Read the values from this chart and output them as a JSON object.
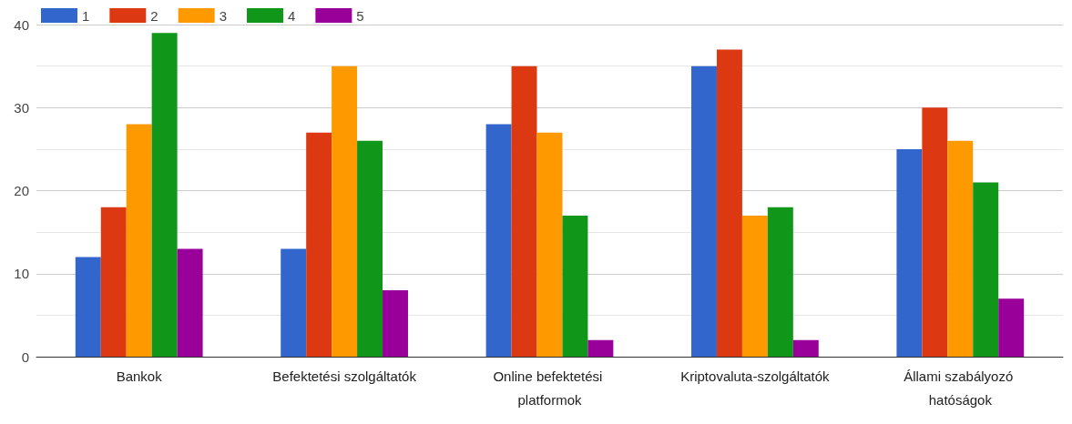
{
  "chart_data": {
    "type": "bar",
    "categories": [
      "Bankok",
      "Befektetési szolgáltatók",
      "Online befektetési platformok",
      "Kriptovaluta-szolgáltatók",
      "Állami szabályozó hatóságok"
    ],
    "series": [
      {
        "name": "1",
        "color": "#3366cc",
        "values": [
          12,
          13,
          28,
          35,
          25
        ]
      },
      {
        "name": "2",
        "color": "#dc3912",
        "values": [
          18,
          27,
          35,
          37,
          30
        ]
      },
      {
        "name": "3",
        "color": "#ff9900",
        "values": [
          28,
          35,
          27,
          17,
          26
        ]
      },
      {
        "name": "4",
        "color": "#109618",
        "values": [
          39,
          26,
          17,
          18,
          21
        ]
      },
      {
        "name": "5",
        "color": "#990099",
        "values": [
          13,
          8,
          2,
          2,
          7
        ]
      }
    ],
    "ylim": [
      0,
      40
    ],
    "yticks": [
      0,
      10,
      20,
      30,
      40
    ],
    "grid": true,
    "legend": "top left"
  }
}
